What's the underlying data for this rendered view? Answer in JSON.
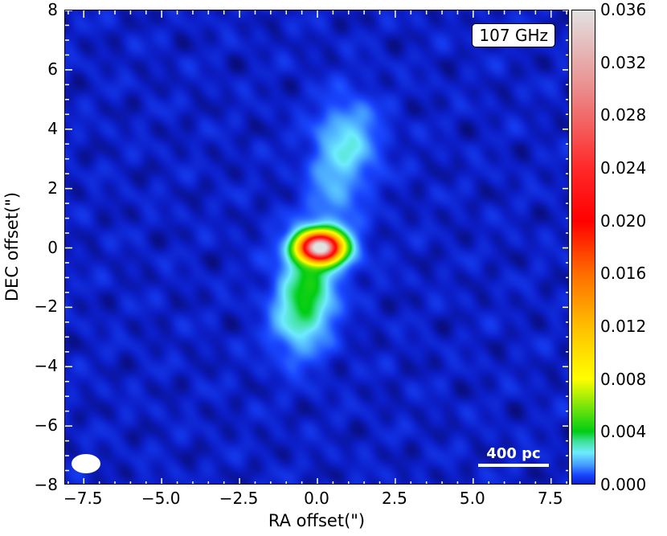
{
  "chart_data": {
    "type": "heatmap",
    "title": "",
    "xlabel": "RA offset(\")",
    "ylabel": "DEC offset(\")",
    "xlim": [
      -8.1,
      8.1
    ],
    "ylim": [
      -8,
      8
    ],
    "xticks": [
      -7.5,
      -5.0,
      -2.5,
      0.0,
      2.5,
      5.0,
      7.5
    ],
    "xtick_labels": [
      "−7.5",
      "−5.0",
      "−2.5",
      "0.0",
      "2.5",
      "5.0",
      "7.5"
    ],
    "yticks": [
      8,
      6,
      4,
      2,
      0,
      -2,
      -4,
      -6,
      -8
    ],
    "ytick_labels": [
      "8",
      "6",
      "4",
      "2",
      "0",
      "−2",
      "−4",
      "−6",
      "−8"
    ],
    "colorbar": {
      "range": [
        0,
        0.036
      ],
      "ticks": [
        0.036,
        0.032,
        0.028,
        0.024,
        0.02,
        0.016,
        0.012,
        0.008,
        0.004,
        0.0
      ],
      "tick_labels": [
        "0.036",
        "0.032",
        "0.028",
        "0.024",
        "0.020",
        "0.016",
        "0.012",
        "0.008",
        "0.004",
        "0.000"
      ],
      "colormap": "jet-like to white"
    },
    "components": [
      {
        "name": "core",
        "x": 0.1,
        "y": 0.0,
        "amp": 0.036,
        "sx": 0.42,
        "sy": 0.3
      },
      {
        "name": "core-halo",
        "x": 0.1,
        "y": 0.0,
        "amp": 0.003,
        "sx": 0.75,
        "sy": 0.6
      },
      {
        "name": "north-lobe",
        "x": 1.0,
        "y": 3.6,
        "amp": 0.0022,
        "sx": 0.7,
        "sy": 1.0
      },
      {
        "name": "jet-bridge",
        "x": 0.5,
        "y": 1.8,
        "amp": 0.0012,
        "sx": 0.6,
        "sy": 1.1
      },
      {
        "name": "south-lobe",
        "x": -0.3,
        "y": -1.5,
        "amp": 0.0035,
        "sx": 0.6,
        "sy": 0.8
      },
      {
        "name": "south-tail",
        "x": -0.6,
        "y": -2.7,
        "amp": 0.0019,
        "sx": 0.65,
        "sy": 0.9
      }
    ],
    "annotations": {
      "frequency": "107 GHz",
      "scale_bar": "400 pc"
    }
  }
}
